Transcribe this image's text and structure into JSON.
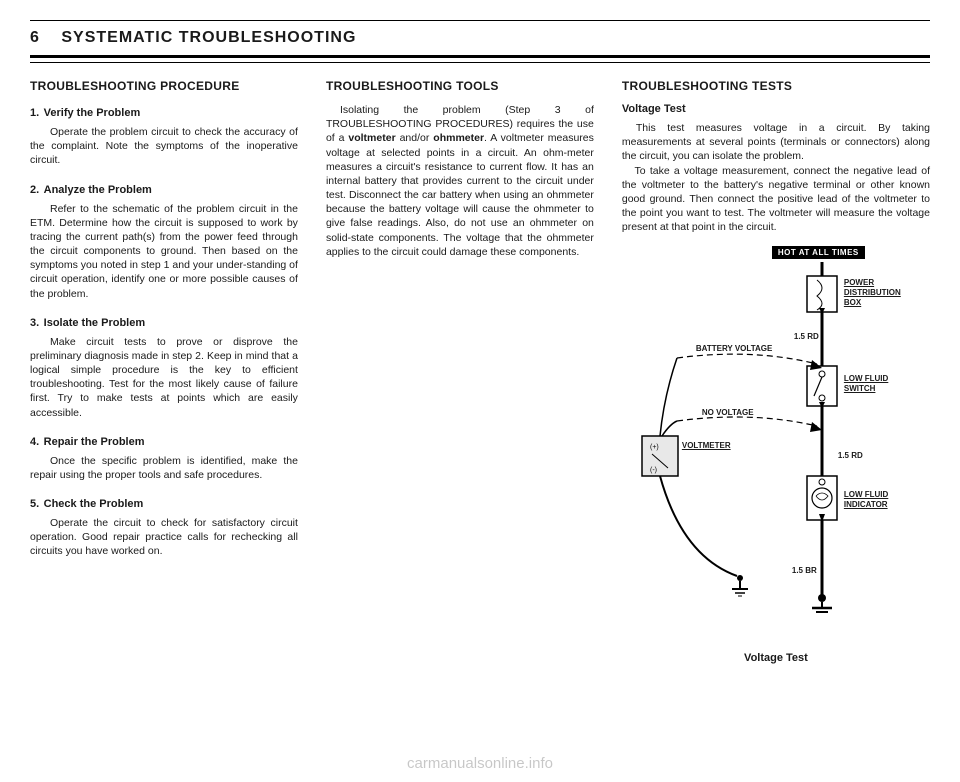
{
  "header": {
    "page_number": "6",
    "title": "SYSTEMATIC  TROUBLESHOOTING"
  },
  "col1": {
    "heading": "TROUBLESHOOTING PROCEDURE",
    "steps": [
      {
        "num": "1.",
        "label": "Verify the Problem",
        "body": "Operate the problem circuit to check the accuracy of the complaint. Note the symptoms of the inoperative circuit."
      },
      {
        "num": "2.",
        "label": "Analyze the Problem",
        "body": "Refer to the schematic of the problem circuit in the ETM. Determine how the circuit is supposed to work by tracing the current path(s) from the power feed through the circuit components to ground. Then based on the symptoms you noted in step 1 and your under-standing of circuit operation, identify one or more possible causes of the problem."
      },
      {
        "num": "3.",
        "label": "Isolate the Problem",
        "body": "Make circuit tests to prove or disprove the preliminary diagnosis made in step 2. Keep in mind that a logical simple procedure is the key to efficient troubleshooting. Test for the most likely cause of failure first. Try to make tests at points which are easily accessible."
      },
      {
        "num": "4.",
        "label": "Repair the Problem",
        "body": "Once the specific problem is identified, make the repair using the proper tools and safe procedures."
      },
      {
        "num": "5.",
        "label": "Check the Problem",
        "body": "Operate the circuit to check for satisfactory circuit operation. Good repair practice calls for rechecking all circuits you have worked on."
      }
    ]
  },
  "col2": {
    "heading": "TROUBLESHOOTING TOOLS",
    "body_html": "Isolating the problem (Step 3 of TROUBLESHOOTING PROCEDURES) requires the use of a <b>voltmeter</b> and/or <b>ohmmeter</b>. A voltmeter measures voltage at selected points in a circuit. An ohm-meter measures a circuit's resistance to current flow. It has an internal battery that provides current to the circuit under test. Disconnect the car battery when using an ohmmeter because the battery voltage will cause the ohmmeter to give false readings. Also, do not use an ohmmeter on solid-state components. The voltage that the ohmmeter applies to the circuit could damage these components."
  },
  "col3": {
    "heading": "TROUBLESHOOTING TESTS",
    "subheading": "Voltage Test",
    "body_html": "This test measures voltage in a circuit. By taking measurements at several points (terminals or connectors) along the circuit, you can isolate the problem.<br>&nbsp;&nbsp;&nbsp;To take a voltage measurement, connect the negative lead of the voltmeter to the battery's negative terminal or other known good ground. Then connect the positive lead of the voltmeter to the point you want to test. The voltmeter will measure the voltage present at that point in the circuit."
  },
  "diagram": {
    "hot_label": "HOT AT ALL TIMES",
    "labels": {
      "power_box_l1": "POWER",
      "power_box_l2": "DISTRIBUTION",
      "power_box_l3": "BOX",
      "wire_top": "1.5 RD",
      "battery_voltage": "BATTERY VOLTAGE",
      "no_voltage": "NO VOLTAGE",
      "voltmeter": "VOLTMETER",
      "low_fluid_switch_l1": "LOW FLUID",
      "low_fluid_switch_l2": "SWITCH",
      "wire_mid": "1.5 RD",
      "low_fluid_ind_l1": "LOW FLUID",
      "low_fluid_ind_l2": "INDICATOR",
      "wire_bot": "1.5 BR"
    },
    "caption": "Voltage Test",
    "colors": {
      "line": "#000000",
      "fill_light": "#e8e8e8"
    }
  },
  "watermark": "carmanualsonline.info"
}
